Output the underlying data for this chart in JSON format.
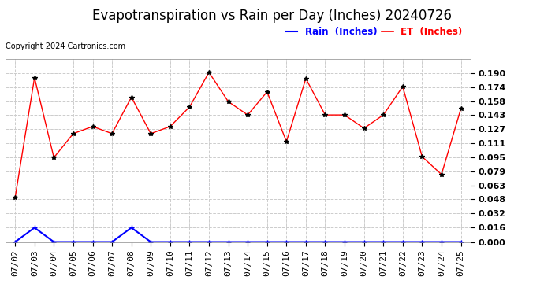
{
  "title": "Evapotranspiration vs Rain per Day (Inches) 20240726",
  "copyright": "Copyright 2024 Cartronics.com",
  "dates": [
    "07/02",
    "07/03",
    "07/04",
    "07/05",
    "07/06",
    "07/07",
    "07/08",
    "07/09",
    "07/10",
    "07/11",
    "07/12",
    "07/13",
    "07/14",
    "07/15",
    "07/16",
    "07/17",
    "07/18",
    "07/19",
    "07/20",
    "07/21",
    "07/22",
    "07/23",
    "07/24",
    "07/25"
  ],
  "et_values": [
    0.05,
    0.185,
    0.095,
    0.122,
    0.13,
    0.122,
    0.163,
    0.122,
    0.13,
    0.152,
    0.191,
    0.158,
    0.143,
    0.169,
    0.113,
    0.184,
    0.143,
    0.143,
    0.128,
    0.143,
    0.175,
    0.096,
    0.076,
    0.15
  ],
  "rain_values": [
    0.0,
    0.016,
    0.0,
    0.0,
    0.0,
    0.0,
    0.016,
    0.0,
    0.0,
    0.0,
    0.0,
    0.0,
    0.0,
    0.0,
    0.0,
    0.0,
    0.0,
    0.0,
    0.0,
    0.0,
    0.0,
    0.0,
    0.0,
    0.0
  ],
  "et_color": "#ff0000",
  "rain_color": "#0000ff",
  "background_color": "#ffffff",
  "grid_color": "#cccccc",
  "title_fontsize": 12,
  "tick_fontsize": 8,
  "legend_rain_label": "Rain  (Inches)",
  "legend_et_label": "ET  (Inches)",
  "ylim_min": 0.0,
  "ylim_max": 0.206,
  "yticks": [
    0.0,
    0.016,
    0.032,
    0.048,
    0.063,
    0.079,
    0.095,
    0.111,
    0.127,
    0.143,
    0.158,
    0.174,
    0.19
  ]
}
